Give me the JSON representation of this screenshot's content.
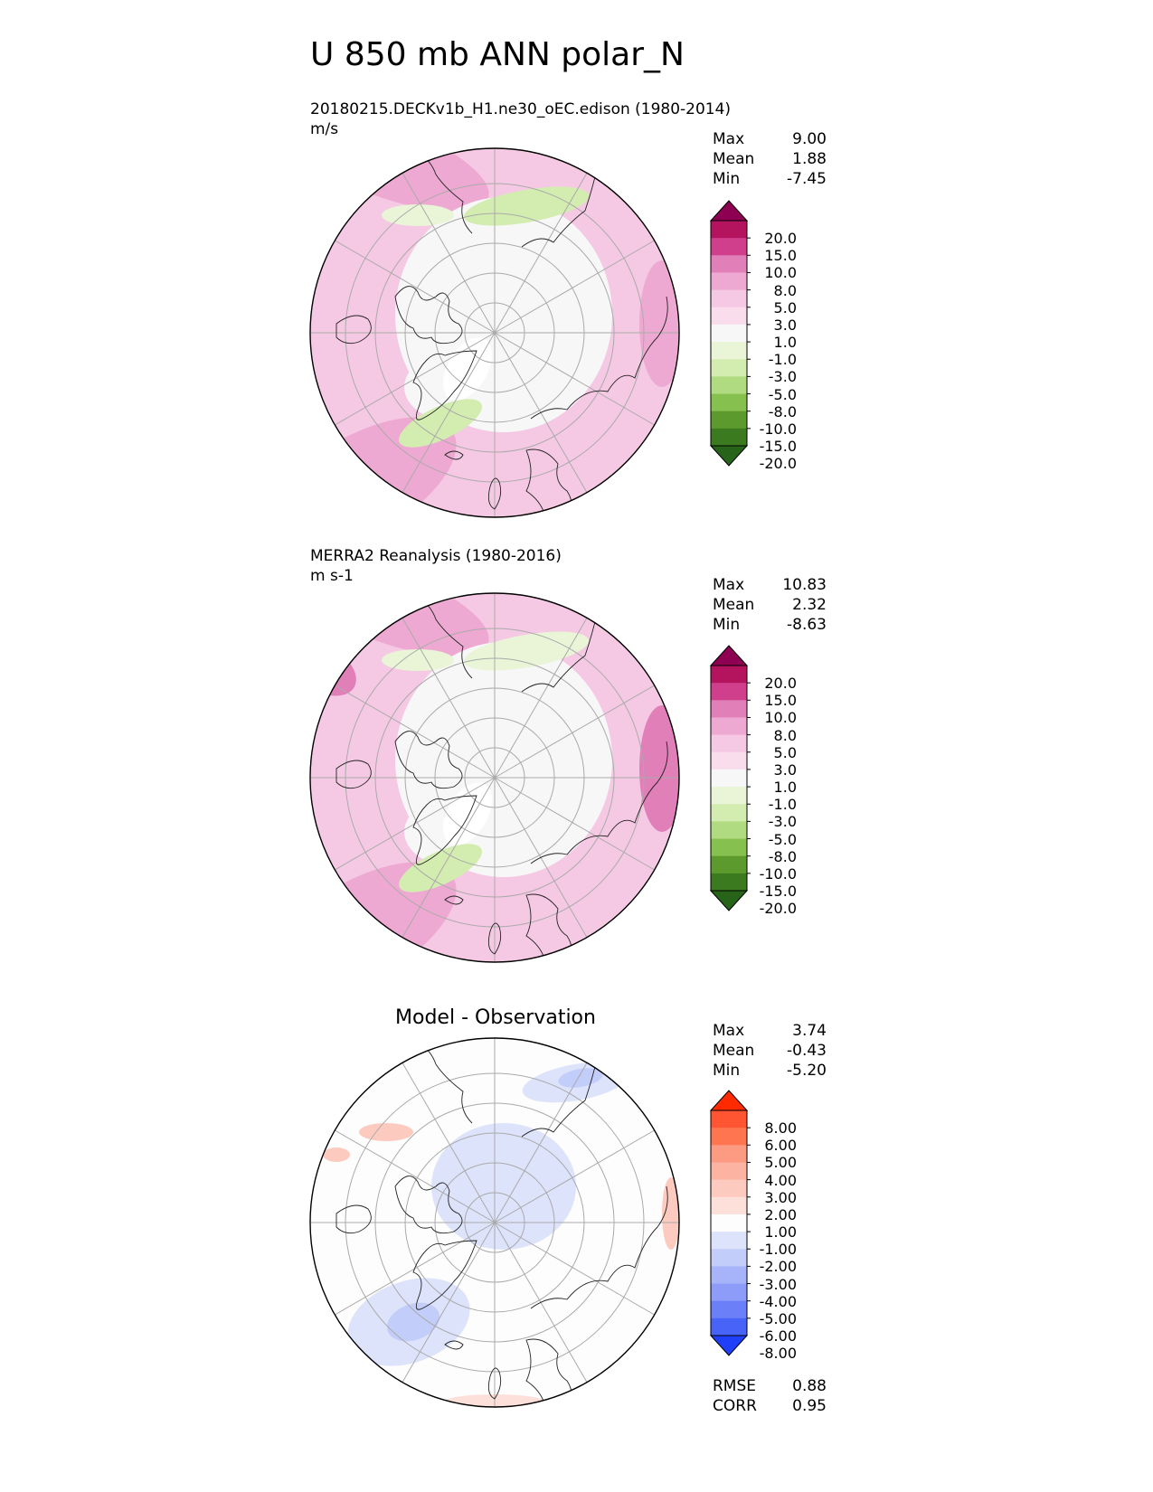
{
  "figure": {
    "title": "U 850 mb ANN polar_N"
  },
  "panels": [
    {
      "id": "model",
      "title": "20180215.DECKv1b_H1.ne30_oEC.edison (1980-2014)",
      "units": "m/s",
      "stats": {
        "max_label": "Max",
        "max": "9.00",
        "mean_label": "Mean",
        "mean": "1.88",
        "min_label": "Min",
        "min": "-7.45"
      }
    },
    {
      "id": "obs",
      "title": "MERRA2 Reanalysis (1980-2016)",
      "units": "m s-1",
      "stats": {
        "max_label": "Max",
        "max": "10.83",
        "mean_label": "Mean",
        "mean": "2.32",
        "min_label": "Min",
        "min": "-8.63"
      }
    },
    {
      "id": "diff",
      "title": "Model - Observation",
      "stats": {
        "max_label": "Max",
        "max": "3.74",
        "mean_label": "Mean",
        "mean": "-0.43",
        "min_label": "Min",
        "min": "-5.20"
      },
      "metrics": {
        "rmse_label": "RMSE",
        "rmse": "0.88",
        "corr_label": "CORR",
        "corr": "0.95"
      }
    }
  ],
  "chart_data": [
    {
      "type": "heatmap",
      "projection": "north-polar-stereographic",
      "title": "20180215.DECKv1b_H1.ne30_oEC.edison (1980-2014)",
      "units": "m/s",
      "colorbar_levels": [
        "20.0",
        "15.0",
        "10.0",
        "8.0",
        "5.0",
        "3.0",
        "1.0",
        "-1.0",
        "-3.0",
        "-5.0",
        "-8.0",
        "-10.0",
        "-15.0",
        "-20.0"
      ],
      "colorbar_colors": [
        "#8e0152",
        "#b4145e",
        "#cf3f8c",
        "#e17fb8",
        "#eea9d2",
        "#f5c9e3",
        "#f9dded",
        "#f7f7f7",
        "#e9f5d6",
        "#d3ecb0",
        "#b1db80",
        "#86c04f",
        "#5d9a2e",
        "#3b7a1f",
        "#276419"
      ],
      "max": 9.0,
      "mean": 1.88,
      "min": -7.45
    },
    {
      "type": "heatmap",
      "projection": "north-polar-stereographic",
      "title": "MERRA2 Reanalysis (1980-2016)",
      "units": "m s-1",
      "colorbar_levels": [
        "20.0",
        "15.0",
        "10.0",
        "8.0",
        "5.0",
        "3.0",
        "1.0",
        "-1.0",
        "-3.0",
        "-5.0",
        "-8.0",
        "-10.0",
        "-15.0",
        "-20.0"
      ],
      "colorbar_colors": [
        "#8e0152",
        "#b4145e",
        "#cf3f8c",
        "#e17fb8",
        "#eea9d2",
        "#f5c9e3",
        "#f9dded",
        "#f7f7f7",
        "#e9f5d6",
        "#d3ecb0",
        "#b1db80",
        "#86c04f",
        "#5d9a2e",
        "#3b7a1f",
        "#276419"
      ],
      "max": 10.83,
      "mean": 2.32,
      "min": -8.63
    },
    {
      "type": "heatmap",
      "projection": "north-polar-stereographic",
      "title": "Model - Observation",
      "colorbar_levels": [
        "8.00",
        "6.00",
        "5.00",
        "4.00",
        "3.00",
        "2.00",
        "1.00",
        "-1.00",
        "-2.00",
        "-3.00",
        "-4.00",
        "-5.00",
        "-6.00",
        "-8.00"
      ],
      "colorbar_colors": [
        "#ff2a00",
        "#ff5533",
        "#ff7550",
        "#fc9a82",
        "#fcb3a2",
        "#fdcabf",
        "#fde0da",
        "#fdfdfd",
        "#dde3fb",
        "#c3cdfa",
        "#a7b4f9",
        "#8c9cf8",
        "#6b7ff8",
        "#4763f8",
        "#1f40f8"
      ],
      "max": 3.74,
      "mean": -0.43,
      "min": -5.2,
      "rmse": 0.88,
      "corr": 0.95
    }
  ]
}
